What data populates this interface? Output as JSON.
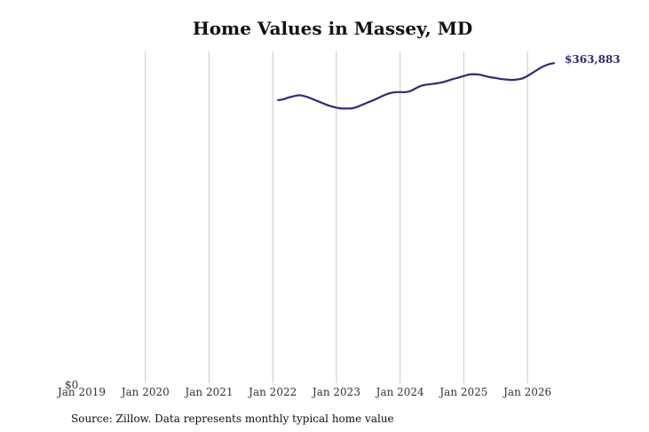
{
  "chart_data": {
    "type": "line",
    "title": "Home Values in Massey, MD",
    "xlabel": "",
    "ylabel": "",
    "x_ticks": [
      "Jan 2019",
      "Jan 2020",
      "Jan 2021",
      "Jan 2022",
      "Jan 2023",
      "Jan 2024",
      "Jan 2025",
      "Jan 2026"
    ],
    "y_tick_label": "$0",
    "ylim": [
      0,
      375000
    ],
    "xlim": [
      "2019-01",
      "2026-07"
    ],
    "grid": "vertical",
    "line_color": "#2e2a7a",
    "end_label": "$363,883",
    "series": [
      {
        "x": [
          "2022-02",
          "2022-03",
          "2022-04",
          "2022-05",
          "2022-06",
          "2022-07",
          "2022-08",
          "2022-09",
          "2022-10",
          "2022-11",
          "2022-12",
          "2023-01",
          "2023-02",
          "2023-03",
          "2023-04",
          "2023-05",
          "2023-06",
          "2023-07",
          "2023-08",
          "2023-09",
          "2023-10",
          "2023-11",
          "2023-12",
          "2024-01",
          "2024-02",
          "2024-03",
          "2024-04",
          "2024-05",
          "2024-06",
          "2024-07",
          "2024-08",
          "2024-09",
          "2024-10",
          "2024-11",
          "2024-12",
          "2025-01",
          "2025-02",
          "2025-03",
          "2025-04",
          "2025-05",
          "2025-06",
          "2025-07",
          "2025-08",
          "2025-09",
          "2025-10",
          "2025-11",
          "2025-12",
          "2026-01",
          "2026-02",
          "2026-03",
          "2026-04",
          "2026-05",
          "2026-06"
        ],
        "values": [
          320000,
          321000,
          323000,
          324500,
          325500,
          324500,
          322500,
          320000,
          317500,
          315000,
          313000,
          311500,
          310500,
          310500,
          310800,
          312500,
          315000,
          317500,
          320000,
          322800,
          325500,
          327700,
          328900,
          329100,
          329000,
          330400,
          333500,
          336200,
          337500,
          338200,
          339000,
          340200,
          342000,
          343800,
          345500,
          347200,
          348900,
          349300,
          348700,
          347200,
          345800,
          345000,
          343800,
          343300,
          342800,
          343300,
          344500,
          347300,
          351000,
          354700,
          358200,
          360500,
          361800
        ]
      }
    ],
    "source": "Source: Zillow. Data represents monthly typical home value"
  }
}
